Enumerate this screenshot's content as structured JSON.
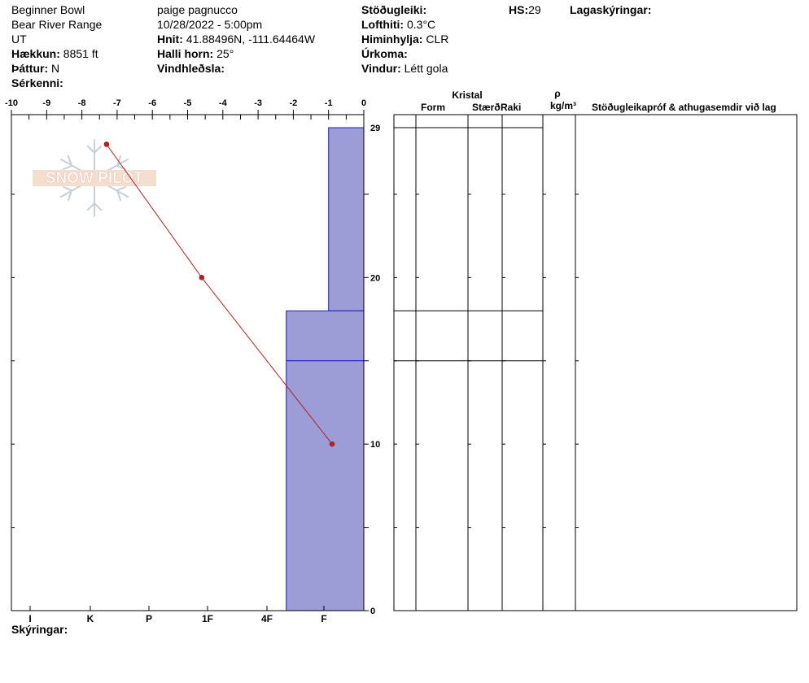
{
  "header": {
    "col1": {
      "location": "Beginner Bowl",
      "range": "Bear River Range",
      "state": "UT",
      "elevation_label": "Hækkun:",
      "elevation_value": "8851 ft",
      "aspect_label": "Þáttur:",
      "aspect_value": "N",
      "specifics_label": "Sérkenni:"
    },
    "col2": {
      "observer": "paige pagnucco",
      "datetime": "10/28/2022 - 5:00pm",
      "coords_label": "Hnit:",
      "coords_value": "41.88496N, -111.64464W",
      "slope_label": "Halli horn:",
      "slope_value": "25°",
      "wind_loading_label": "Vindhleðsla:"
    },
    "col3": {
      "stability_label": "Stöðugleiki:",
      "air_temp_label": "Lofthiti:",
      "air_temp_value": "0.3°C",
      "sky_label": "Himinhylja:",
      "sky_value": "CLR",
      "precip_label": "Úrkoma:",
      "wind_label": "Vindur:",
      "wind_value": "Létt gola"
    },
    "hs_label": "HS:",
    "hs_value": "29",
    "layer_notes_label": "Lagaskýringar:"
  },
  "table_headers": {
    "crystal": "Kristal",
    "form": "Form",
    "size": "Stærð",
    "moisture": "Raki",
    "rho": "ρ",
    "density_unit": "kg/m³",
    "comments": "Stöðugleikapróf & athugasemdir við lag"
  },
  "footer": {
    "notes_label": "Skýringar:"
  },
  "logo": {
    "text": "SNOW PILOT"
  },
  "chart_data": {
    "type": "bar",
    "top_axis": {
      "range": [
        -10,
        0
      ],
      "ticks": [
        "-10",
        "-9",
        "-8",
        "-7",
        "-6",
        "-5",
        "-4",
        "-3",
        "-2",
        "-1",
        "0"
      ]
    },
    "height_axis": {
      "range": [
        0,
        29
      ],
      "labels": [
        "29",
        "20",
        "10",
        "0"
      ],
      "label_values": [
        29,
        20,
        10,
        0
      ]
    },
    "hardness_axis": {
      "ticks": [
        "I",
        "K",
        "P",
        "1F",
        "4F",
        "F"
      ]
    },
    "hardness_layers": [
      {
        "bottom": 18,
        "top": 29,
        "hardness": -1
      },
      {
        "bottom": 15,
        "top": 18,
        "hardness": -2.2
      },
      {
        "bottom": 0,
        "top": 15,
        "hardness": -2.2
      }
    ],
    "temperature_profile": [
      {
        "temp": -7.3,
        "height": 28
      },
      {
        "temp": -4.6,
        "height": 20
      },
      {
        "temp": -0.9,
        "height": 10
      }
    ],
    "colors": {
      "layer_fill": "#9c9cd6",
      "layer_stroke": "#1c1cbc",
      "temp_line": "#b22222",
      "temp_point": "#b22222"
    }
  }
}
